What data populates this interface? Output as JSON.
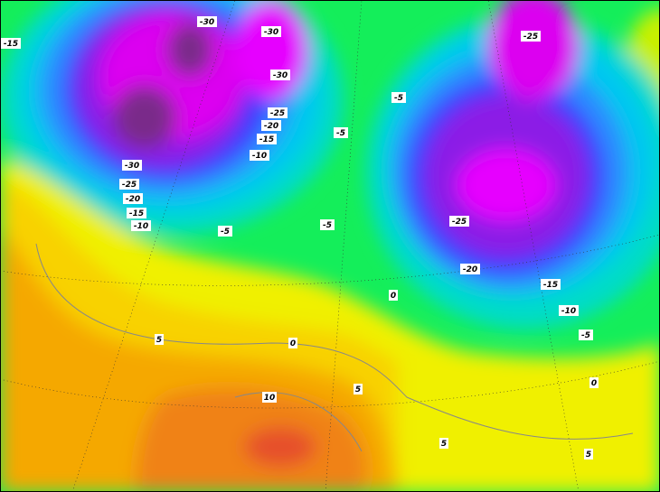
{
  "contour_labels": [
    "-15",
    "-30",
    "-30",
    "-30",
    "-25",
    "-20",
    "-15",
    "-10",
    "-5",
    "-5",
    "-25",
    "-30",
    "-25",
    "-20",
    "-15",
    "-10",
    "-5",
    "-5",
    "-25",
    "-20",
    "-15",
    "-10",
    "-5",
    "0",
    "5",
    "0",
    "5",
    "10",
    "5",
    "5",
    "0"
  ]
}
